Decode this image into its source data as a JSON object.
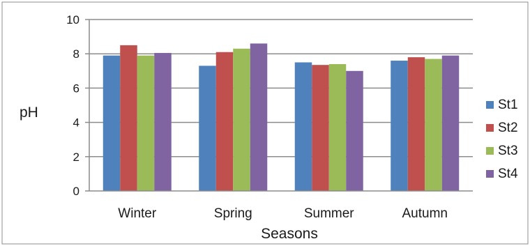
{
  "chart_data": {
    "type": "bar",
    "title": "",
    "xlabel": "Seasons",
    "ylabel": "pH",
    "ylim": [
      0,
      10
    ],
    "yticks": [
      0,
      2,
      4,
      6,
      8,
      10
    ],
    "grid": true,
    "legend_position": "right",
    "categories": [
      "Winter",
      "Spring",
      "Summer",
      "Autumn"
    ],
    "series": [
      {
        "name": "St1",
        "color": "#4f81bd",
        "values": [
          7.9,
          7.3,
          7.5,
          7.6
        ]
      },
      {
        "name": "St2",
        "color": "#c0504d",
        "values": [
          8.5,
          8.1,
          7.35,
          7.8
        ]
      },
      {
        "name": "St3",
        "color": "#9bbb59",
        "values": [
          7.9,
          8.3,
          7.4,
          7.7
        ]
      },
      {
        "name": "St4",
        "color": "#8064a2",
        "values": [
          8.05,
          8.6,
          7.0,
          7.9
        ]
      }
    ]
  }
}
